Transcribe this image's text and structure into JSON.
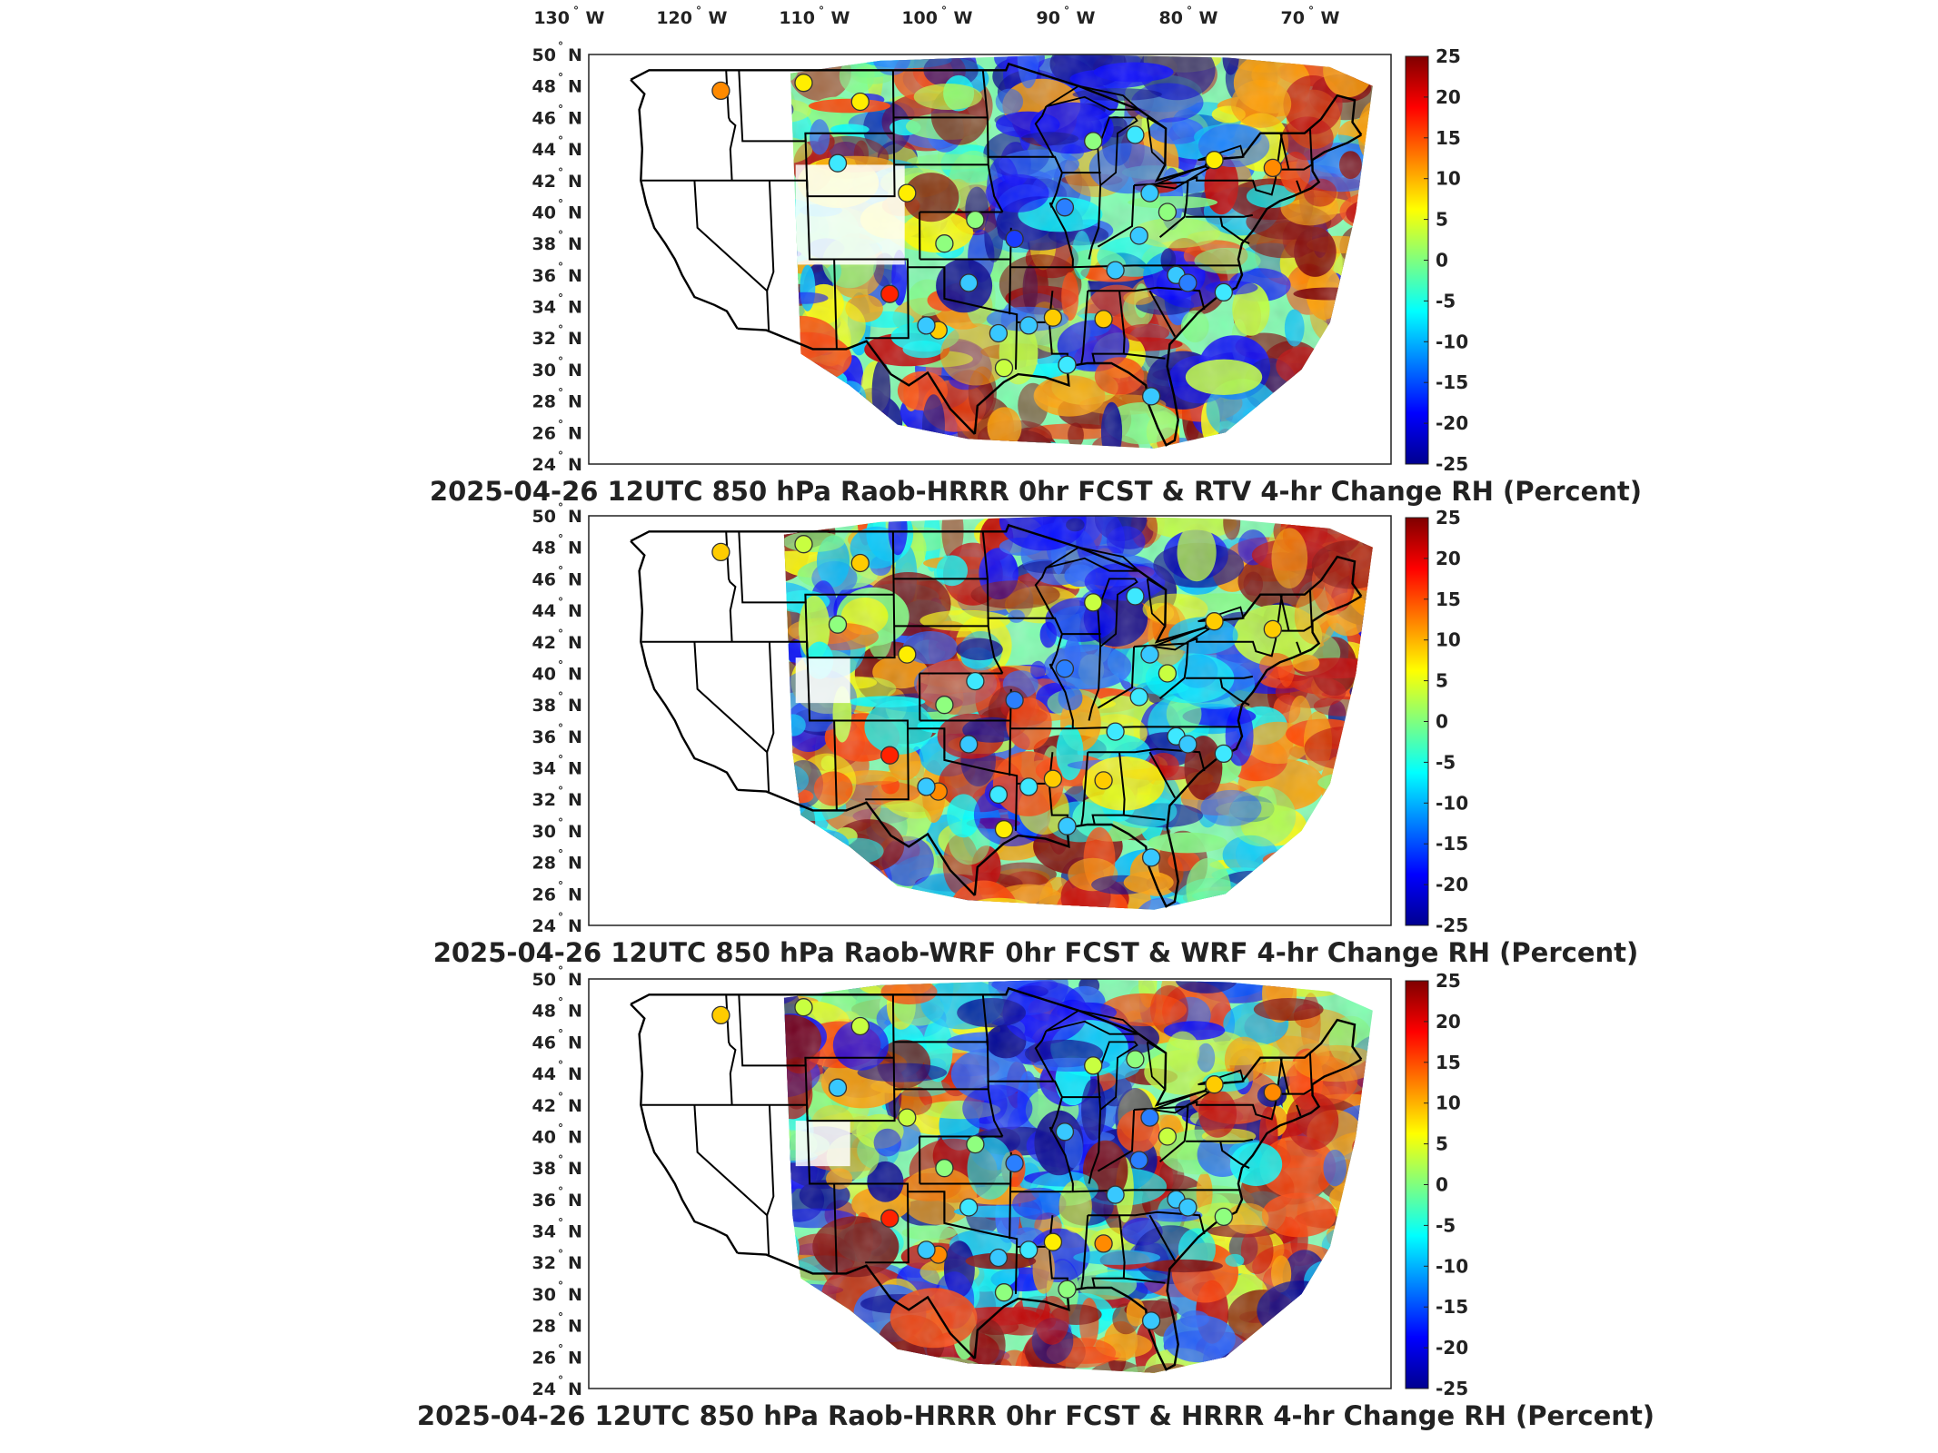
{
  "top_lon_labels": [
    "130",
    "120",
    "110",
    "100",
    "90",
    "80",
    "70"
  ],
  "lon_hemisphere": "W",
  "lat_labels": [
    "50",
    "48",
    "46",
    "44",
    "42",
    "40",
    "38",
    "36",
    "34",
    "32",
    "30",
    "28",
    "26",
    "24"
  ],
  "lat_hemisphere": "N",
  "colorbar": {
    "ticks": [
      "25",
      "20",
      "15",
      "10",
      "5",
      "0",
      "-5",
      "-10",
      "-15",
      "-20",
      "-25"
    ],
    "range": [
      -25,
      25
    ],
    "colormap": "jet",
    "colors": [
      "#00008f",
      "#0000ff",
      "#007fff",
      "#00ffff",
      "#7fff7f",
      "#ffff00",
      "#ff7f00",
      "#ff0000",
      "#7f0000"
    ]
  },
  "panels": [
    {
      "title": "2025-04-26 12UTC 850 hPa Raob-HRRR 0hr FCST & RTV 4-hr Change RH (Percent)"
    },
    {
      "title": "2025-04-26 12UTC 850 hPa Raob-WRF 0hr FCST & WRF 4-hr Change RH (Percent)"
    },
    {
      "title": "2025-04-26 12UTC 850 hPa Raob-HRRR 0hr FCST & HRRR 4-hr Change RH (Percent)"
    }
  ]
}
